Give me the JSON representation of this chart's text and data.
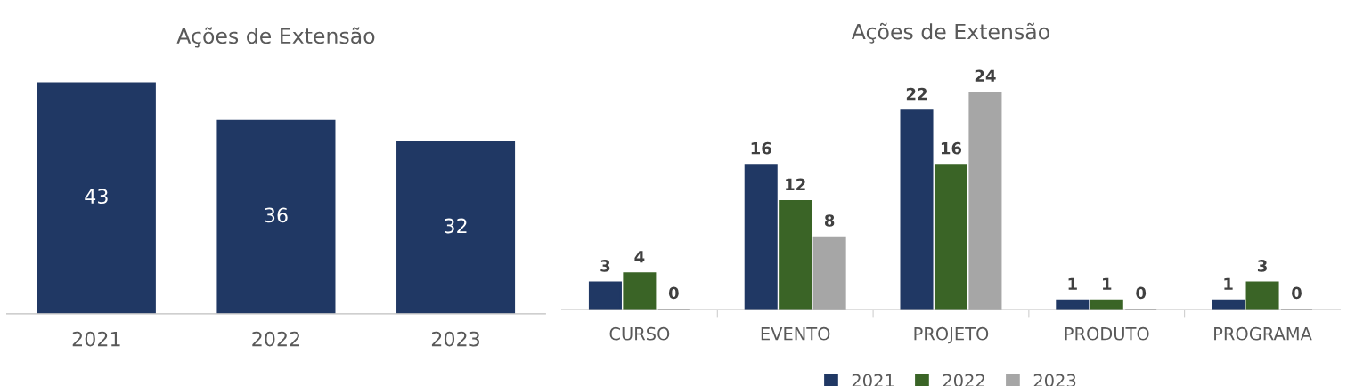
{
  "chart_data": [
    {
      "type": "bar",
      "title": "Ações de Extensão",
      "categories": [
        "2021",
        "2022",
        "2023"
      ],
      "values": [
        43,
        36,
        32
      ],
      "color": "#203864",
      "data_labels": true,
      "grid": false
    },
    {
      "type": "bar",
      "title": "Ações de Extensão",
      "categories": [
        "CURSO",
        "EVENTO",
        "PROJETO",
        "PRODUTO",
        "PROGRAMA"
      ],
      "series": [
        {
          "name": "2021",
          "color": "#203864",
          "values": [
            3,
            16,
            22,
            1,
            1
          ]
        },
        {
          "name": "2022",
          "color": "#3a6426",
          "values": [
            4,
            12,
            16,
            1,
            3
          ]
        },
        {
          "name": "2023",
          "color": "#a6a6a6",
          "values": [
            0,
            8,
            24,
            0,
            0
          ]
        }
      ],
      "data_labels": true,
      "grid": false,
      "legend": "bottom"
    }
  ]
}
